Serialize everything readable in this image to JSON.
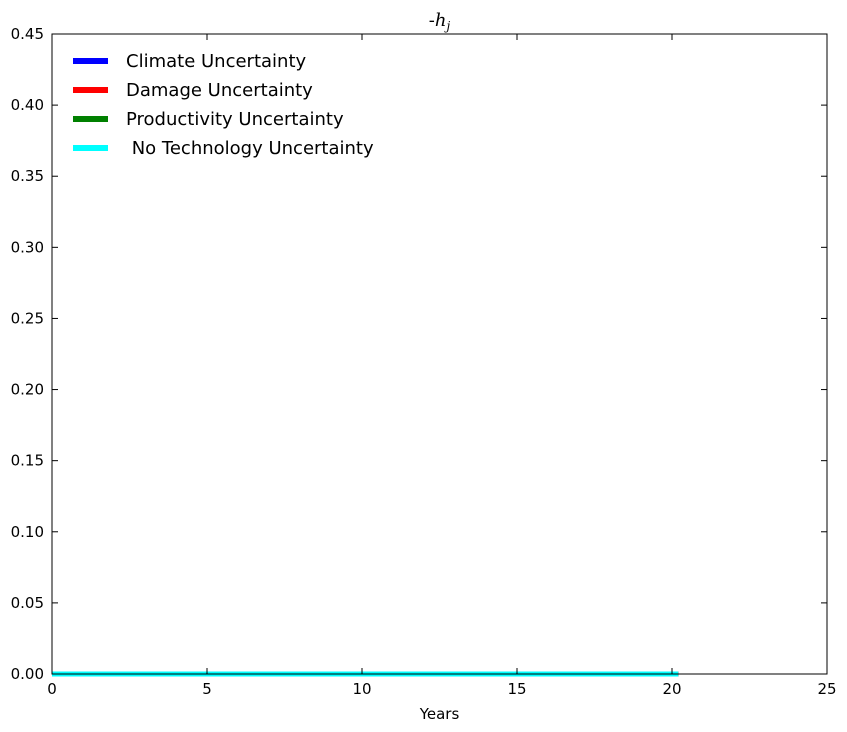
{
  "chart_data": {
    "type": "line",
    "title_prefix": "-",
    "title_var": "h",
    "title_sub": "j",
    "xlabel": "Years",
    "ylabel": "",
    "xlim": [
      0,
      25
    ],
    "ylim": [
      0,
      0.45
    ],
    "xticks": [
      "0",
      "5",
      "10",
      "15",
      "20",
      "25"
    ],
    "yticks": [
      "0.00",
      "0.05",
      "0.10",
      "0.15",
      "0.20",
      "0.25",
      "0.30",
      "0.35",
      "0.40",
      "0.45"
    ],
    "legend_position": "top-left",
    "grid": false,
    "series": [
      {
        "name": "Climate Uncertainty",
        "color": "#0000ff",
        "x": [
          0,
          20.2
        ],
        "y": [
          0,
          0
        ]
      },
      {
        "name": "Damage Uncertainty",
        "color": "#ff0000",
        "x": [
          0,
          20.2
        ],
        "y": [
          0,
          0
        ]
      },
      {
        "name": "Productivity Uncertainty",
        "color": "#008000",
        "x": [
          0,
          20.2
        ],
        "y": [
          0,
          0
        ]
      },
      {
        "name": " No Technology Uncertainty",
        "color": "#00ffff",
        "x": [
          0,
          20.2
        ],
        "y": [
          0,
          0
        ]
      }
    ]
  }
}
